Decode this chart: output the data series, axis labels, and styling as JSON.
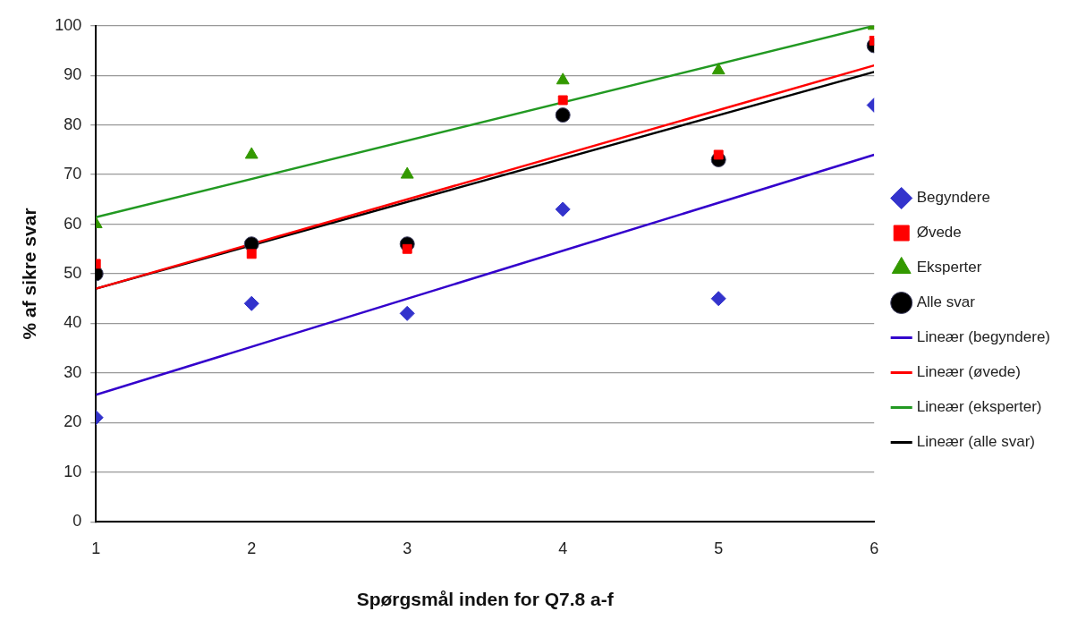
{
  "chart_data": {
    "type": "scatter",
    "xlabel": "Spørgsmål inden for Q7.8 a-f",
    "ylabel": "% af sikre svar",
    "xlim": [
      1,
      6
    ],
    "xticks": [
      1,
      2,
      3,
      4,
      5,
      6
    ],
    "ylim": [
      0,
      100
    ],
    "yticks": [
      0,
      10,
      20,
      30,
      40,
      50,
      60,
      70,
      80,
      90,
      100
    ],
    "grid": "y",
    "legend": "right",
    "series": [
      {
        "name": "Begyndere",
        "marker": "diamond",
        "color": "#3333cc",
        "x": [
          1,
          2,
          3,
          4,
          5,
          6
        ],
        "values": [
          21,
          44,
          42,
          63,
          45,
          84
        ]
      },
      {
        "name": "Øvede",
        "marker": "square",
        "color": "#ff0000",
        "x": [
          1,
          2,
          3,
          4,
          5,
          6
        ],
        "values": [
          52,
          54,
          55,
          85,
          74,
          97
        ]
      },
      {
        "name": "Eksperter",
        "marker": "triangle",
        "color": "#339900",
        "x": [
          1,
          2,
          3,
          4,
          5,
          6
        ],
        "values": [
          60,
          74,
          70,
          89,
          91,
          100
        ]
      },
      {
        "name": "Alle svar",
        "marker": "circle",
        "color": "#000000",
        "x": [
          1,
          2,
          3,
          4,
          5,
          6
        ],
        "values": [
          50,
          56,
          56,
          82,
          73,
          96
        ]
      },
      {
        "name": "Lineær (begyndere)",
        "type": "line",
        "color": "#3300cc",
        "x": [
          1,
          6
        ],
        "values": [
          25.6,
          74
        ]
      },
      {
        "name": "Lineær (øvede)",
        "type": "line",
        "color": "#ff0000",
        "x": [
          1,
          6
        ],
        "values": [
          47,
          92
        ]
      },
      {
        "name": "Lineær (eksperter)",
        "type": "line",
        "color": "#229922",
        "x": [
          1,
          6
        ],
        "values": [
          61.4,
          100
        ]
      },
      {
        "name": "Lineær (alle svar)",
        "type": "line",
        "color": "#000000",
        "x": [
          1,
          6
        ],
        "values": [
          47,
          90.7
        ]
      }
    ]
  }
}
